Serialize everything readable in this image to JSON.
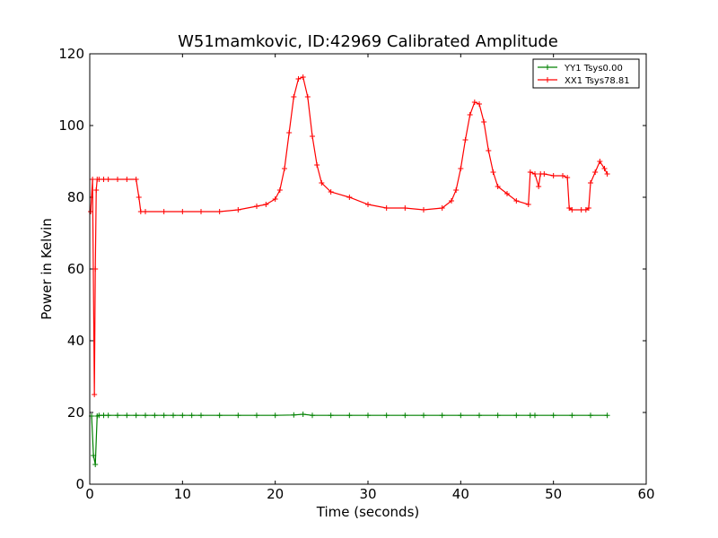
{
  "chart_data": {
    "type": "line",
    "title": "W51mamkovic, ID:42969 Calibrated Amplitude",
    "xlabel": "Time (seconds)",
    "ylabel": "Power in Kelvin",
    "xlim": [
      0,
      60
    ],
    "ylim": [
      0,
      120
    ],
    "xticks": [
      "0",
      "10",
      "20",
      "30",
      "40",
      "50",
      "60"
    ],
    "yticks": [
      "0",
      "20",
      "40",
      "60",
      "80",
      "100",
      "120"
    ],
    "grid": false,
    "legend_position": "top-right",
    "series": [
      {
        "name": "YY1 Tsys0.00",
        "color": "#008000",
        "x": [
          0.2,
          0.4,
          0.6,
          0.8,
          1.0,
          1.5,
          2,
          3,
          4,
          5,
          6,
          7,
          8,
          9,
          10,
          11,
          12,
          14,
          16,
          18,
          20,
          22,
          23,
          24,
          26,
          28,
          30,
          32,
          34,
          36,
          38,
          40,
          42,
          44,
          46,
          47.5,
          48,
          50,
          52,
          54,
          55.8
        ],
        "values": [
          19,
          8,
          5.5,
          19,
          19.2,
          19.2,
          19.2,
          19.2,
          19.2,
          19.2,
          19.2,
          19.2,
          19.2,
          19.2,
          19.2,
          19.2,
          19.2,
          19.2,
          19.2,
          19.2,
          19.2,
          19.3,
          19.5,
          19.2,
          19.2,
          19.2,
          19.2,
          19.2,
          19.2,
          19.2,
          19.2,
          19.2,
          19.2,
          19.2,
          19.2,
          19.2,
          19.2,
          19.2,
          19.2,
          19.2,
          19.2
        ]
      },
      {
        "name": "XX1 Tsys78.81",
        "color": "#ff0000",
        "x": [
          0.1,
          0.3,
          0.5,
          0.6,
          0.7,
          0.8,
          1.0,
          1.5,
          2,
          3,
          4,
          5,
          5.3,
          5.5,
          6,
          8,
          10,
          12,
          14,
          16,
          18,
          19,
          20,
          20.5,
          21,
          21.5,
          22,
          22.5,
          23,
          23.5,
          24,
          24.5,
          25,
          26,
          28,
          30,
          32,
          34,
          36,
          38,
          39,
          39.5,
          40,
          40.5,
          41,
          41.5,
          42,
          42.5,
          43,
          43.5,
          44,
          45,
          46,
          47.3,
          47.5,
          48,
          48.4,
          48.6,
          49,
          50,
          51,
          51.5,
          51.7,
          52,
          53,
          53.5,
          53.8,
          54,
          54.5,
          55,
          55.5,
          55.8
        ],
        "values": [
          76,
          85,
          25,
          60,
          82,
          85,
          85,
          85,
          85,
          85,
          85,
          85,
          80,
          76,
          76,
          76,
          76,
          76,
          76,
          76.5,
          77.5,
          78,
          79.5,
          82,
          88,
          98,
          108,
          113,
          113.5,
          108,
          97,
          89,
          84,
          81.5,
          80,
          78,
          77,
          77,
          76.5,
          77,
          79,
          82,
          88,
          96,
          103,
          106.5,
          106,
          101,
          93,
          87,
          83,
          81,
          79,
          78,
          87,
          86.5,
          83,
          86.5,
          86.5,
          86,
          86,
          85.5,
          77,
          76.5,
          76.5,
          76.5,
          77,
          84,
          87,
          90,
          88,
          86.5
        ]
      }
    ]
  }
}
